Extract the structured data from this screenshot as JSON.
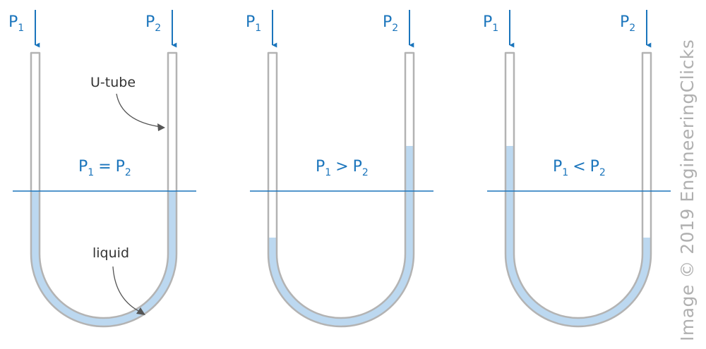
{
  "colors": {
    "tube_outline": "#b3b3b3",
    "liquid": "#bcd8f0",
    "pressure_arrow": "#1b75bc",
    "reference_line": "#1b75bc",
    "label_text": "#333333",
    "annotation_arrow": "#555555",
    "watermark": "#b0b0b0"
  },
  "labels": {
    "p_letter": "P",
    "sub_1": "1",
    "sub_2": "2",
    "u_tube": "U-tube",
    "liquid": "liquid"
  },
  "panels": [
    {
      "relation": "=",
      "condition": "P1 = P2",
      "left_level": "equal",
      "right_level": "equal"
    },
    {
      "relation": ">",
      "condition": "P1 > P2",
      "left_level": "low",
      "right_level": "high"
    },
    {
      "relation": "<",
      "condition": "P1 < P2",
      "left_level": "high",
      "right_level": "low"
    }
  ],
  "watermark": "Image © 2019 EngineeringClicks"
}
